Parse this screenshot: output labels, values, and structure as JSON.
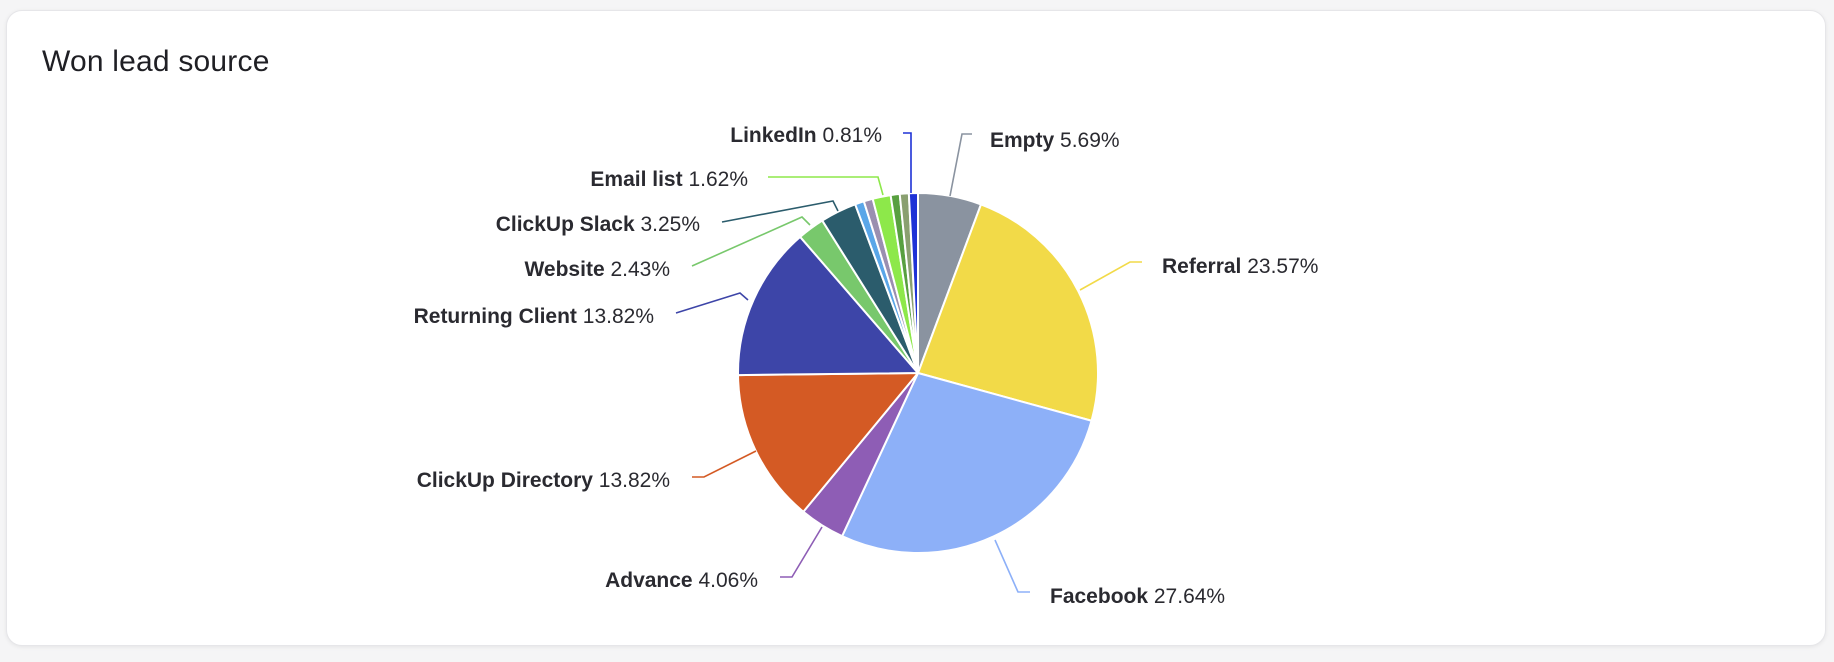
{
  "card": {
    "title": "Won lead source"
  },
  "chart_data": {
    "type": "pie",
    "title": "Won lead source",
    "unit": "%",
    "slices": [
      {
        "name": "Empty",
        "value": 5.69,
        "label": "5.69%",
        "color": "#8a93a0"
      },
      {
        "name": "Referral",
        "value": 23.57,
        "label": "23.57%",
        "color": "#f2da48"
      },
      {
        "name": "Facebook",
        "value": 27.64,
        "label": "27.64%",
        "color": "#8db0f8"
      },
      {
        "name": "Advance",
        "value": 4.06,
        "label": "4.06%",
        "color": "#8e5db5"
      },
      {
        "name": "ClickUp Directory",
        "value": 13.82,
        "label": "13.82%",
        "color": "#d45a24"
      },
      {
        "name": "Returning Client",
        "value": 13.82,
        "label": "13.82%",
        "color": "#3d45a8"
      },
      {
        "name": "Website",
        "value": 2.43,
        "label": "2.43%",
        "color": "#78c86c"
      },
      {
        "name": "ClickUp Slack",
        "value": 3.25,
        "label": "3.25%",
        "color": "#2b5c6c"
      },
      {
        "name": "",
        "value": 0.81,
        "label": "",
        "color": "#5aa6e8"
      },
      {
        "name": "",
        "value": 0.81,
        "label": "",
        "color": "#9a8fb0"
      },
      {
        "name": "Email list",
        "value": 1.62,
        "label": "1.62%",
        "color": "#8de84a"
      },
      {
        "name": "",
        "value": 0.81,
        "label": "",
        "color": "#58a040"
      },
      {
        "name": "",
        "value": 0.81,
        "label": "",
        "color": "#8aa070"
      },
      {
        "name": "LinkedIn",
        "value": 0.81,
        "label": "0.81%",
        "color": "#1e32d6"
      }
    ]
  }
}
